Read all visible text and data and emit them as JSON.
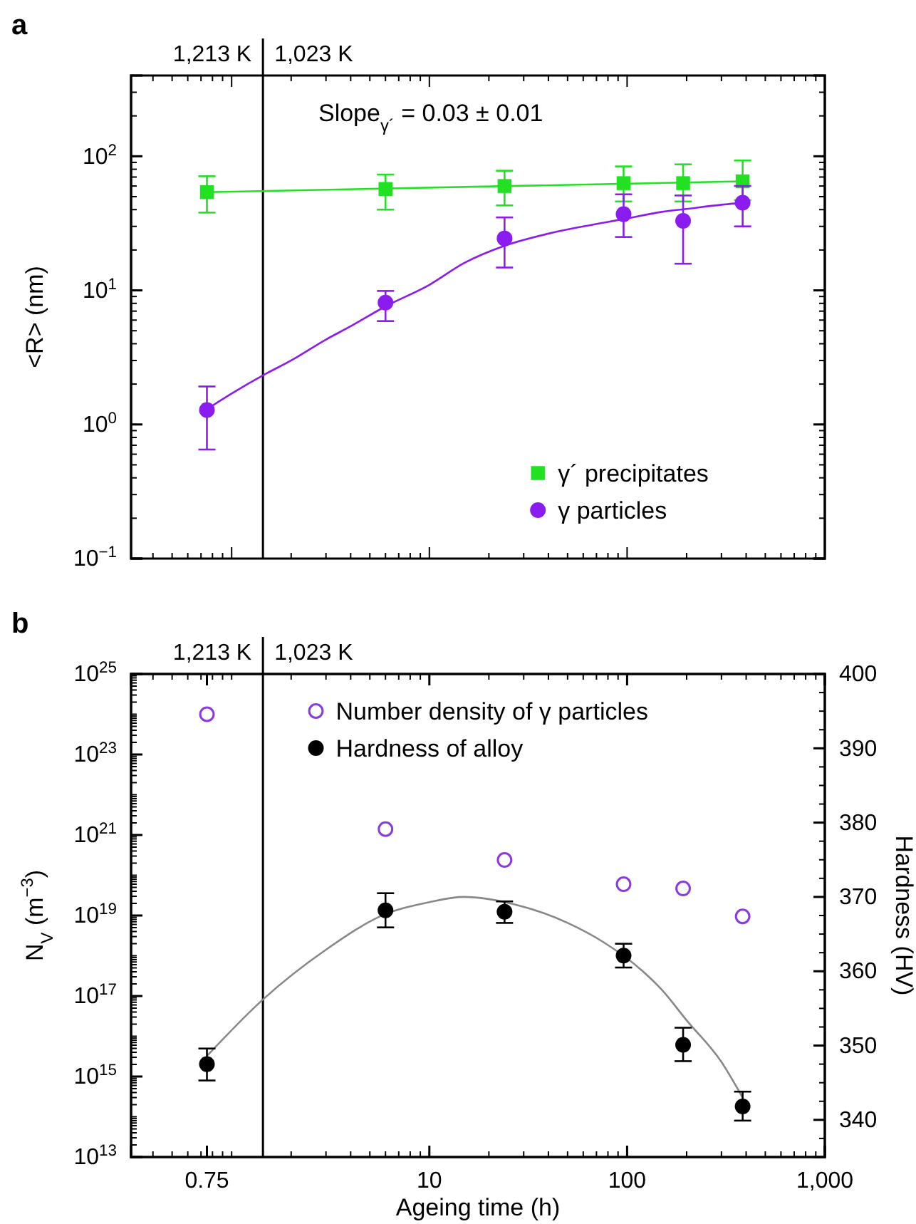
{
  "chart_data": [
    {
      "type": "scatter",
      "title": "a",
      "ylabel": "<R> (nm)",
      "log": "xy",
      "xlim": [
        0.31,
        1000
      ],
      "ylim": [
        0.1,
        400
      ],
      "yticks": [
        {
          "value": 0.1,
          "label": "10$^{−1}$"
        },
        {
          "value": 1,
          "label": "10$^{0}$"
        },
        {
          "value": 10,
          "label": "10$^{1}$"
        },
        {
          "value": 100,
          "label": "10$^{2}$"
        }
      ],
      "tick_labels": "y",
      "legend": "bottom right",
      "x": [
        0.75,
        6,
        24,
        96,
        192,
        384
      ],
      "ref_lines": [
        {
          "axis": "x",
          "value": 1.44,
          "label": "1,023 K",
          "color": "#000000"
        }
      ],
      "annotations": [
        {
          "text": "1,213 K",
          "x": 1.44
        },
        "Slope$_{γ´}$ = 0.03 ± 0.01"
      ],
      "series": [
        {
          "name": "γ´ precipitates",
          "type": "scatter",
          "marker": "square",
          "color": "#22e022",
          "values": [
            54,
            57,
            60,
            63,
            63,
            65
          ],
          "errors": [
            [
              38,
              71
            ],
            [
              40,
              73
            ],
            [
              43,
              78
            ],
            [
              46,
              84
            ],
            [
              46,
              87
            ],
            [
              47,
              93
            ]
          ]
        },
        {
          "type": "line",
          "marker": "none",
          "color": "#22e022",
          "x": [
            0.75,
            384
          ],
          "values": [
            54,
            65
          ]
        },
        {
          "name": "γ particles",
          "type": "scatter",
          "marker": "circle",
          "color": "#8a1cf0",
          "values": [
            1.28,
            8.1,
            24.4,
            37,
            33,
            45
          ],
          "errors": [
            [
              0.65,
              1.92
            ],
            [
              5.9,
              9.9
            ],
            [
              14.8,
              35
            ],
            [
              25,
              52
            ],
            [
              15.8,
              51
            ],
            [
              30,
              60
            ]
          ]
        },
        {
          "type": "line",
          "marker": "none",
          "color": "#8a1cf0",
          "x": [
            0.75,
            1,
            1.5,
            2,
            3,
            4,
            6,
            10,
            15,
            24,
            40,
            60,
            96,
            150,
            200,
            300,
            384
          ],
          "values": [
            1.3,
            1.7,
            2.4,
            3.0,
            4.3,
            5.4,
            7.6,
            11,
            16,
            21.5,
            26.5,
            30,
            34,
            38.5,
            40.5,
            43.5,
            45
          ]
        }
      ]
    },
    {
      "type": "scatter",
      "title": "b",
      "xlabel": "Ageing time (h)",
      "ylabel": "N$_{V}$ (m$^{−3}$)",
      "y2label": "Hardness (HV)",
      "log": "xy",
      "xlim": [
        0.31,
        1000
      ],
      "ylim": [
        10000000000000.0,
        1e+25
      ],
      "y2lim": [
        335,
        400
      ],
      "xticks": [
        {
          "value": 0.75,
          "label": "0.75"
        },
        10,
        100,
        {
          "value": 1000,
          "label": "1,000"
        }
      ],
      "yticks": [
        {
          "value": 10000000000000.0,
          "label": "10$^{13}$"
        },
        {
          "value": 1000000000000000.0,
          "label": "10$^{15}$"
        },
        {
          "value": 1e+17,
          "label": "10$^{17}$"
        },
        {
          "value": 1e+19,
          "label": "10$^{19}$"
        },
        {
          "value": 1e+21,
          "label": "10$^{21}$"
        },
        {
          "value": 1e+23,
          "label": "10$^{23}$"
        },
        {
          "value": 1e+25,
          "label": "10$^{25}$"
        }
      ],
      "y2ticks": [
        340,
        350,
        360,
        370,
        380,
        390,
        400
      ],
      "legend": "top",
      "x": [
        0.75,
        6,
        24,
        96,
        192,
        384
      ],
      "ref_lines": [
        {
          "axis": "x",
          "value": 1.44,
          "label": "1,023 K",
          "color": "#000000"
        }
      ],
      "annotations": [
        {
          "text": "1,213 K",
          "x": 1.44
        }
      ],
      "series": [
        {
          "name": "Number density of γ particles",
          "type": "scatter",
          "marker": "circle",
          "color": "#8a3ae0",
          "values": [
            1e+24,
            1.4e+21,
            2.4e+20,
            6e+19,
            4.7e+19,
            9.5e+18
          ]
        },
        {
          "name": "Hardness of alloy",
          "type": "scatter",
          "marker": "circle",
          "axis": "y2",
          "color": "#000000",
          "values": [
            347.5,
            368.2,
            368.0,
            362.1,
            350.1,
            341.8
          ],
          "errors": [
            [
              345.3,
              349.6
            ],
            [
              365.9,
              370.5
            ],
            [
              366.5,
              369.4
            ],
            [
              360.5,
              363.7
            ],
            [
              347.9,
              352.4
            ],
            [
              339.9,
              343.8
            ]
          ]
        },
        {
          "type": "line",
          "marker": "none",
          "axis": "y2",
          "color": "#888888",
          "x": [
            0.75,
            1.44,
            3,
            6,
            10,
            15,
            24,
            50,
            75,
            120,
            150,
            200,
            300,
            384
          ],
          "values": [
            348.6,
            356.2,
            362.9,
            367.7,
            369.3,
            370,
            369.3,
            366.5,
            364,
            360,
            357.5,
            353.4,
            347.8,
            343
          ]
        }
      ]
    }
  ]
}
